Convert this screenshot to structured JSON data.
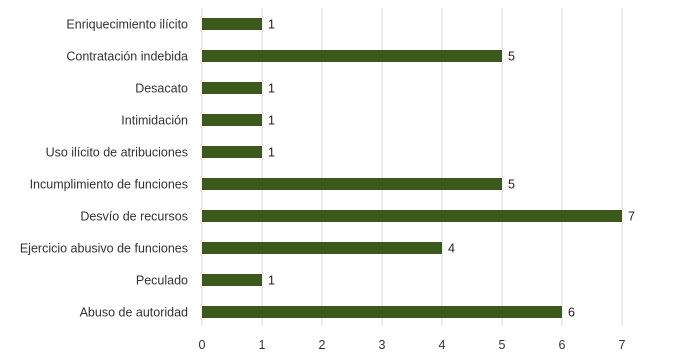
{
  "chart_data": {
    "type": "bar",
    "orientation": "horizontal",
    "categories": [
      "Enriquecimiento ilícito",
      "Contratación indebida",
      "Desacato",
      "Intimidación",
      "Uso ilícito de atribuciones",
      "Incumplimiento de funciones",
      "Desvío de recursos",
      "Ejercicio abusivo de funciones",
      "Peculado",
      "Abuso de autoridad"
    ],
    "values": [
      1,
      5,
      1,
      1,
      1,
      5,
      7,
      4,
      1,
      6
    ],
    "xlim": [
      0,
      7
    ],
    "xticks": [
      0,
      1,
      2,
      3,
      4,
      5,
      6,
      7
    ],
    "grid": "vertical",
    "data_labels": true,
    "bar_color": "#3d5a1e",
    "title": "",
    "xlabel": "",
    "ylabel": ""
  }
}
